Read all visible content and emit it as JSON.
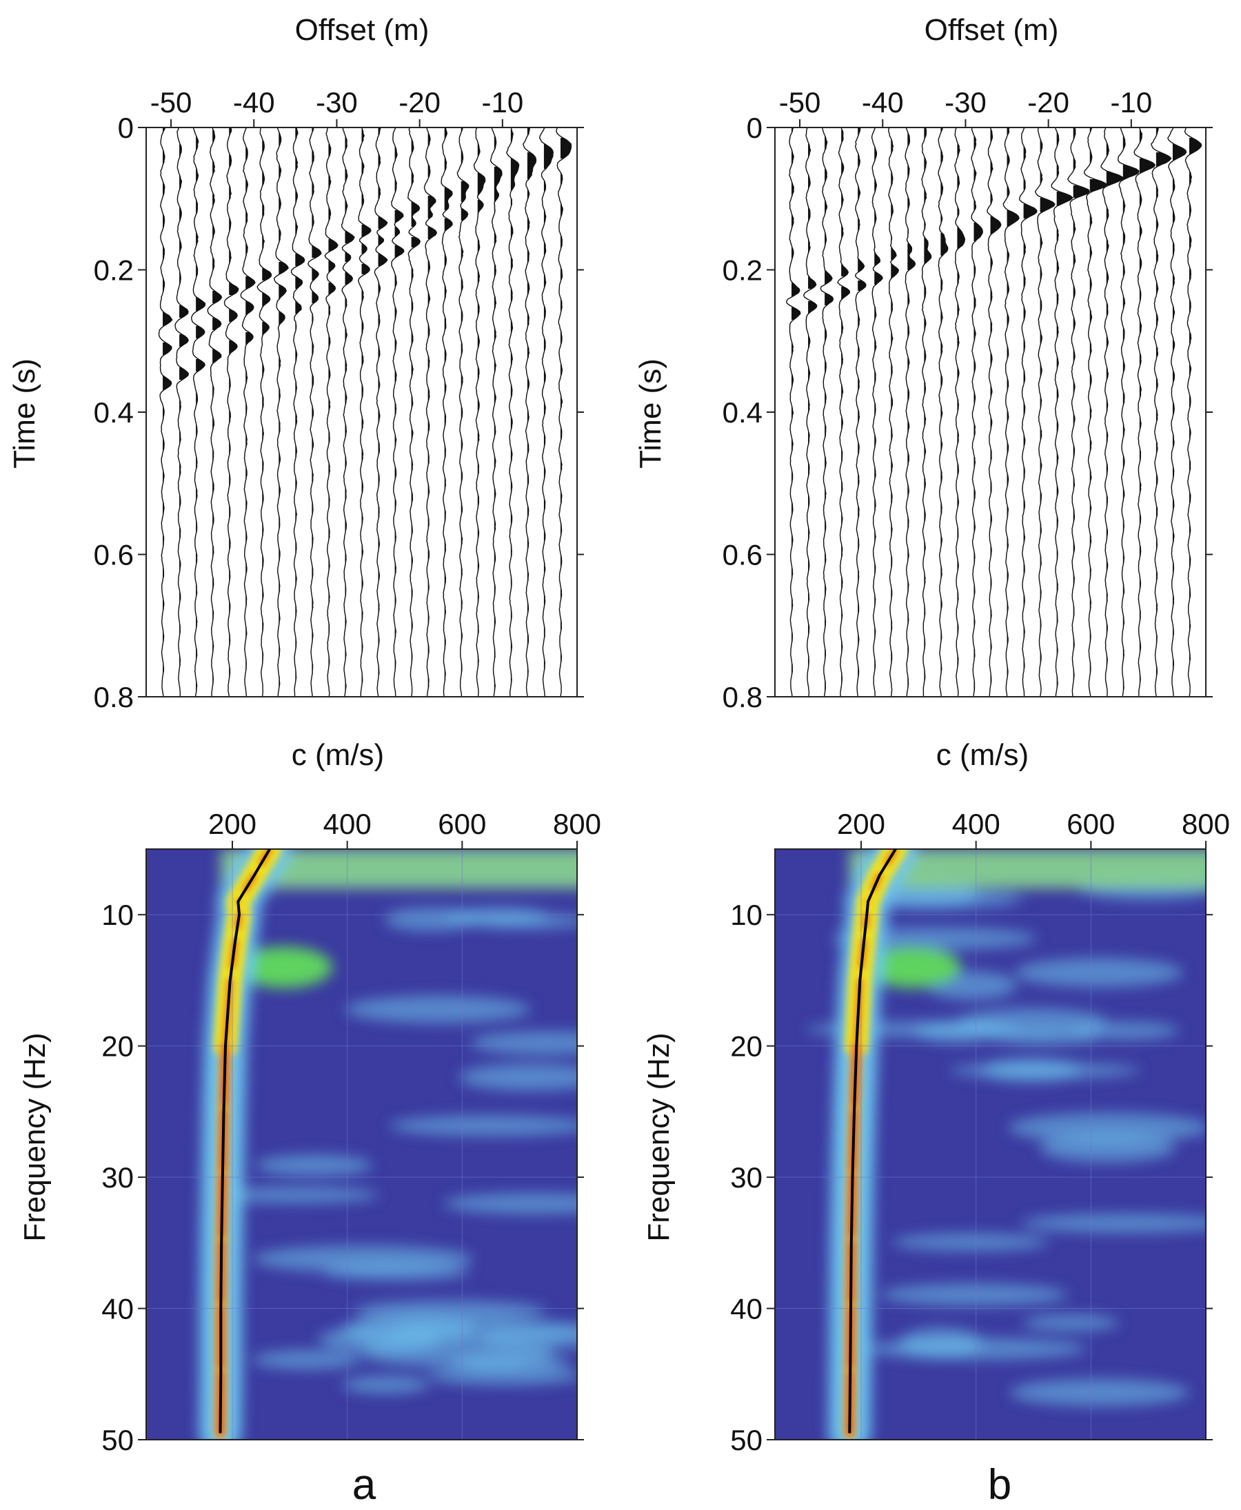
{
  "chart_data": [
    {
      "panel": "a",
      "type": "wiggle",
      "xlabel": "Offset (m)",
      "ylabel": "Time (s)",
      "xlim": [
        -53,
        -1
      ],
      "ylim": [
        0,
        0.8
      ],
      "xticks": [
        -50,
        -40,
        -30,
        -20,
        -10
      ],
      "xtick_labels": [
        "-50",
        "-40",
        "-30",
        "-20",
        "-10"
      ],
      "yticks": [
        0,
        0.2,
        0.4,
        0.6,
        0.8
      ],
      "ytick_labels": [
        "0",
        "0.2",
        "0.4",
        "0.6",
        "0.8"
      ],
      "traces": {
        "first_offset": -51,
        "last_offset": -3,
        "spacing": 2
      },
      "arrivals": [
        {
          "offset": [
            -51,
            -3
          ],
          "time": [
            0.27,
            0.02
          ]
        },
        {
          "offset": [
            -51,
            -3
          ],
          "time": [
            0.31,
            0.03
          ]
        },
        {
          "offset": [
            -51,
            -3
          ],
          "time": [
            0.36,
            0.04
          ]
        }
      ]
    },
    {
      "panel": "b",
      "type": "wiggle",
      "xlabel": "Offset (m)",
      "ylabel": "Time (s)",
      "xlim": [
        -53,
        -1
      ],
      "ylim": [
        0,
        0.8
      ],
      "xticks": [
        -50,
        -40,
        -30,
        -20,
        -10
      ],
      "xtick_labels": [
        "-50",
        "-40",
        "-30",
        "-20",
        "-10"
      ],
      "yticks": [
        0,
        0.2,
        0.4,
        0.6,
        0.8
      ],
      "ytick_labels": [
        "0",
        "0.2",
        "0.4",
        "0.6",
        "0.8"
      ],
      "traces": {
        "first_offset": -51,
        "last_offset": -3,
        "spacing": 2
      },
      "arrivals": [
        {
          "offset": [
            -51,
            -3
          ],
          "time": [
            0.26,
            0.02
          ]
        },
        {
          "offset": [
            -51,
            -3
          ],
          "time": [
            0.23,
            0.03
          ]
        }
      ]
    },
    {
      "panel": "a",
      "type": "heatmap",
      "xlabel": "c (m/s)",
      "ylabel": "Frequency (Hz)",
      "xlim": [
        50,
        800
      ],
      "ylim": [
        5,
        50
      ],
      "xticks": [
        200,
        400,
        600,
        800
      ],
      "xtick_labels": [
        "200",
        "400",
        "600",
        "800"
      ],
      "yticks": [
        10,
        20,
        30,
        40,
        50
      ],
      "ytick_labels": [
        "10",
        "20",
        "30",
        "40",
        "50"
      ],
      "dispersion_curve": {
        "frequency": [
          5,
          7,
          9,
          10,
          12,
          15,
          20,
          25,
          30,
          35,
          40,
          45,
          49.5
        ],
        "c": [
          265,
          238,
          210,
          212,
          205,
          196,
          188,
          185,
          183,
          181,
          180,
          180,
          179
        ]
      }
    },
    {
      "panel": "b",
      "type": "heatmap",
      "xlabel": "c (m/s)",
      "ylabel": "Frequency (Hz)",
      "xlim": [
        50,
        800
      ],
      "ylim": [
        5,
        50
      ],
      "xticks": [
        200,
        400,
        600,
        800
      ],
      "xtick_labels": [
        "200",
        "400",
        "600",
        "800"
      ],
      "yticks": [
        10,
        20,
        30,
        40,
        50
      ],
      "ytick_labels": [
        "10",
        "20",
        "30",
        "40",
        "50"
      ],
      "dispersion_curve": {
        "frequency": [
          5,
          7,
          9,
          10,
          12,
          15,
          20,
          25,
          30,
          35,
          40,
          45,
          49.5
        ],
        "c": [
          260,
          232,
          212,
          210,
          205,
          198,
          192,
          188,
          185,
          183,
          182,
          181,
          180
        ]
      }
    }
  ],
  "panel_labels": [
    "a",
    "b"
  ]
}
